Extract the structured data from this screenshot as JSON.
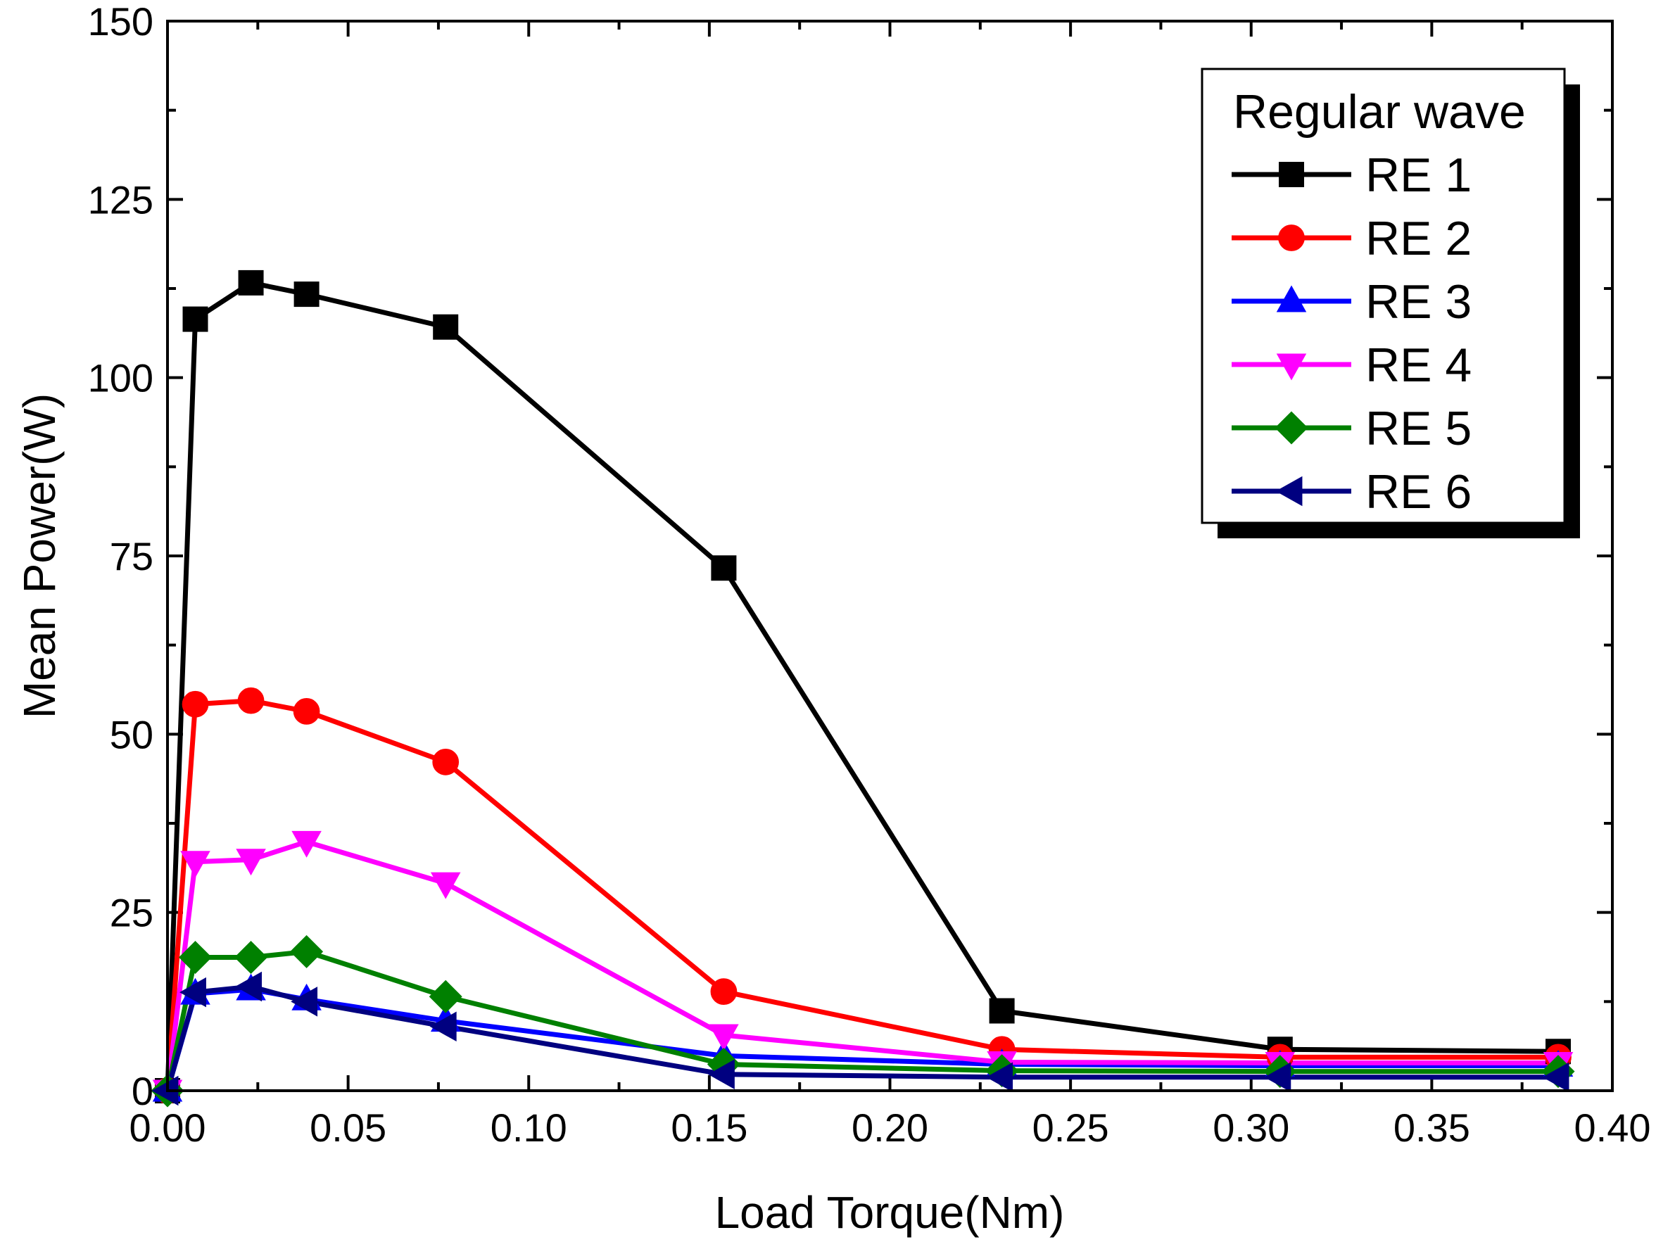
{
  "chart_data": {
    "type": "line",
    "title": "",
    "xlabel": "Load Torque(Nm)",
    "ylabel": "Mean Power(W)",
    "xlim": [
      0.0,
      0.4
    ],
    "ylim": [
      0,
      150
    ],
    "xticks": [
      "0.00",
      "0.05",
      "0.10",
      "0.15",
      "0.20",
      "0.25",
      "0.30",
      "0.35",
      "0.40"
    ],
    "yticks": [
      "0",
      "25",
      "50",
      "75",
      "100",
      "125",
      "150"
    ],
    "grid": false,
    "legend_title": "Regular wave",
    "legend_position": "top-right",
    "x": [
      0.0,
      0.0077,
      0.0231,
      0.0385,
      0.077,
      0.154,
      0.231,
      0.308,
      0.385
    ],
    "series": [
      {
        "name": "RE 1",
        "color": "#000000",
        "marker": "square",
        "values": [
          0,
          108.2,
          113.3,
          111.7,
          107.1,
          73.3,
          11.2,
          5.8,
          5.5
        ]
      },
      {
        "name": "RE 2",
        "color": "#ff0000",
        "marker": "circle",
        "values": [
          0,
          54.2,
          54.7,
          53.2,
          46.1,
          13.9,
          5.8,
          4.7,
          4.7
        ]
      },
      {
        "name": "RE 3",
        "color": "#0000ff",
        "marker": "triangle-up",
        "values": [
          0,
          13.6,
          14.2,
          12.8,
          9.8,
          4.9,
          3.7,
          3.5,
          3.5
        ]
      },
      {
        "name": "RE 4",
        "color": "#ff00ff",
        "marker": "triangle-down",
        "values": [
          0,
          32.1,
          32.4,
          34.9,
          29.1,
          7.8,
          4.0,
          3.9,
          3.9
        ]
      },
      {
        "name": "RE 5",
        "color": "#008000",
        "marker": "diamond",
        "values": [
          0,
          18.7,
          18.7,
          19.5,
          13.2,
          3.7,
          2.8,
          2.7,
          2.7
        ]
      },
      {
        "name": "RE 6",
        "color": "#000080",
        "marker": "triangle-left",
        "values": [
          0,
          13.8,
          14.6,
          12.5,
          9.0,
          2.3,
          1.9,
          1.9,
          1.9
        ]
      }
    ]
  }
}
